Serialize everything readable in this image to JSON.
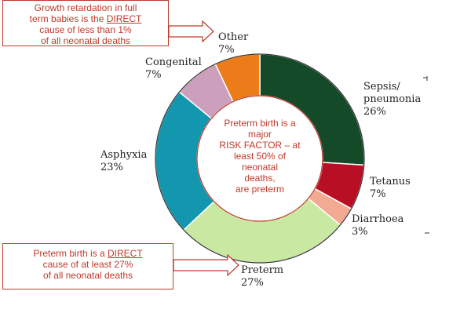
{
  "chart_data": {
    "type": "pie",
    "variant": "donut",
    "categories": [
      "Sepsis/\npneumonia",
      "Tetanus",
      "Diarrhoea",
      "Preterm",
      "Asphyxia",
      "Congenital",
      "Other"
    ],
    "values": [
      26,
      7,
      3,
      27,
      23,
      7,
      7
    ],
    "value_labels": [
      "26%",
      "7%",
      "3%",
      "27%",
      "23%",
      "7%",
      "7%"
    ],
    "colors": [
      "#154a28",
      "#b80f25",
      "#f2aa92",
      "#c9e8a2",
      "#1297ae",
      "#cc9fbc",
      "#ec7b19"
    ],
    "label_names": {
      "sepsis": [
        "Sepsis/",
        "pneumonia"
      ],
      "tetanus": "Tetanus",
      "diarrhoea": "Diarrhoea",
      "preterm": "Preterm",
      "asphyxia": "Asphyxia",
      "congenital": "Congenital",
      "other": "Other"
    }
  },
  "center_note": {
    "lines": [
      "Preterm birth is a",
      "major",
      "RISK FACTOR – at",
      "least 50% of",
      "neonatal",
      "deaths,",
      "are preterm"
    ]
  },
  "note_growth": {
    "line1": "Growth retardation in full",
    "line2_pre": "term babies is the ",
    "line2_link": "DIRECT",
    "line3": "cause of less than 1%",
    "line4": "of all neonatal deaths"
  },
  "note_preterm": {
    "line1_pre": "Preterm birth is a ",
    "line1_link": "DIRECT",
    "line2": "cause of at least 27%",
    "line3": "of all neonatal deaths"
  },
  "colors": {
    "note_border": "#c0392b",
    "note_text": "#c0392b"
  }
}
